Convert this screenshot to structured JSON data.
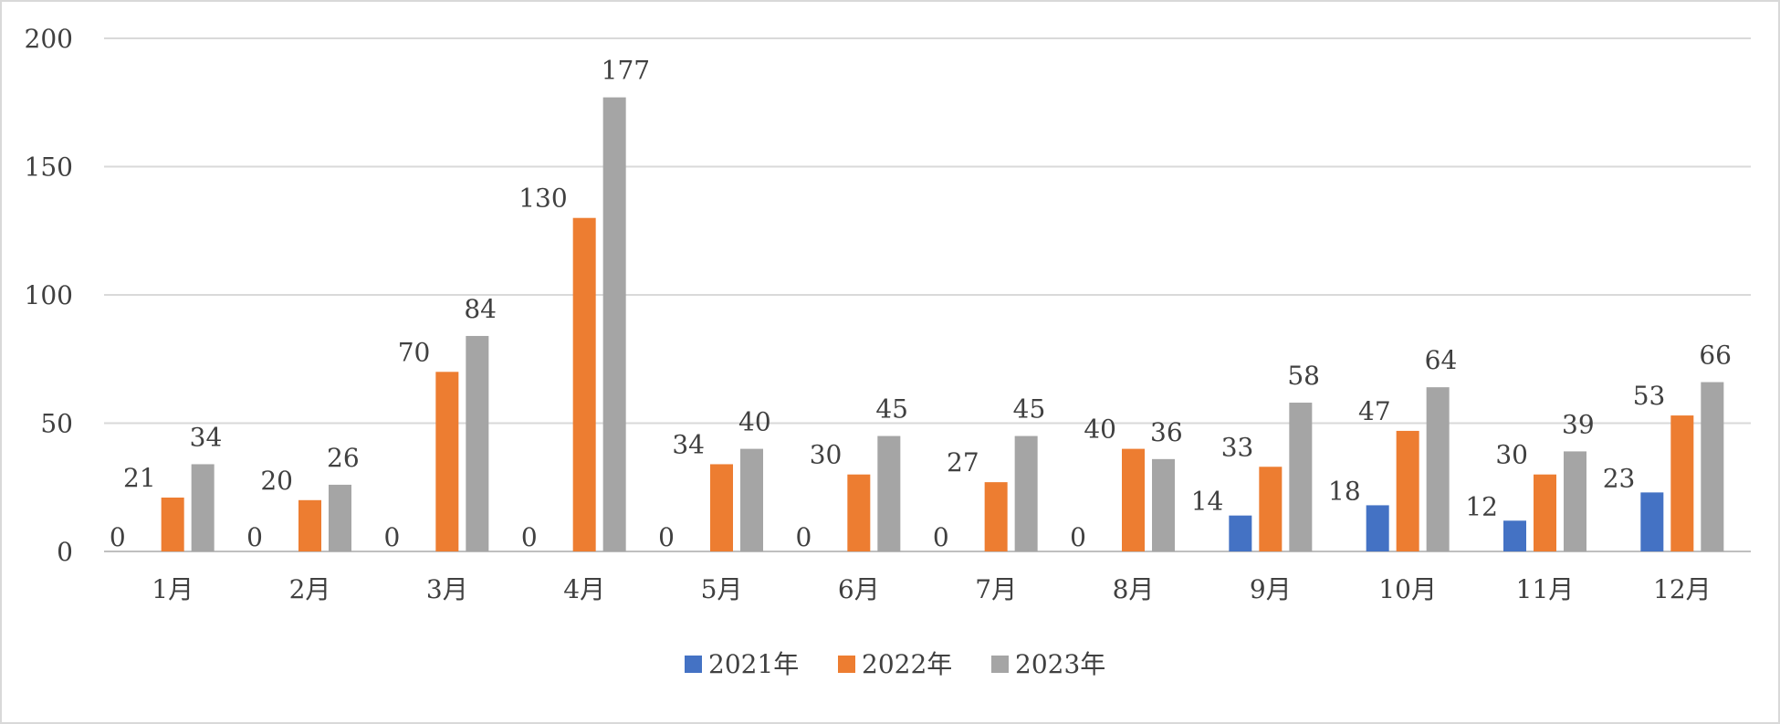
{
  "chart_data": {
    "type": "bar",
    "categories": [
      "1月",
      "2月",
      "3月",
      "4月",
      "5月",
      "6月",
      "7月",
      "8月",
      "9月",
      "10月",
      "11月",
      "12月"
    ],
    "series": [
      {
        "name": "2021年",
        "color": "#4472c4",
        "values": [
          0,
          0,
          0,
          0,
          0,
          0,
          0,
          0,
          14,
          18,
          12,
          23
        ]
      },
      {
        "name": "2022年",
        "color": "#ed7d31",
        "values": [
          21,
          20,
          70,
          130,
          34,
          30,
          27,
          40,
          33,
          47,
          30,
          53
        ]
      },
      {
        "name": "2023年",
        "color": "#a5a5a5",
        "values": [
          34,
          26,
          84,
          177,
          40,
          45,
          45,
          36,
          58,
          64,
          39,
          66
        ]
      }
    ],
    "ylim": [
      0,
      200
    ],
    "yticks": [
      0,
      50,
      100,
      150,
      200
    ],
    "grid": true,
    "legend": "bottom",
    "data_labels": true
  }
}
